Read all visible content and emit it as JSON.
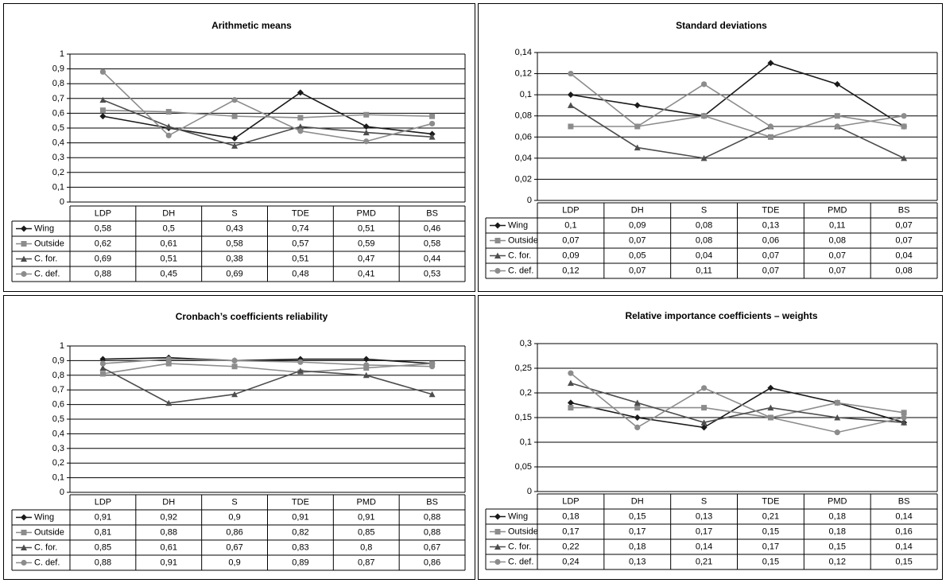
{
  "chart_data": [
    {
      "type": "line",
      "title": "Arithmetic means",
      "categories": [
        "LDP",
        "DH",
        "S",
        "TDE",
        "PMD",
        "BS"
      ],
      "ylim": [
        0,
        1
      ],
      "yticks": [
        "0",
        "0,1",
        "0,2",
        "0,3",
        "0,4",
        "0,5",
        "0,6",
        "0,7",
        "0,8",
        "0,9",
        "1"
      ],
      "grid": true,
      "legend": "data-table-left",
      "series": [
        {
          "name": "Wing",
          "values": [
            0.58,
            0.5,
            0.43,
            0.74,
            0.51,
            0.46
          ],
          "labels": [
            "0,58",
            "0,5",
            "0,43",
            "0,74",
            "0,51",
            "0,46"
          ],
          "color": "#1a1a1a",
          "marker": "diamond"
        },
        {
          "name": "Outside",
          "values": [
            0.62,
            0.61,
            0.58,
            0.57,
            0.59,
            0.58
          ],
          "labels": [
            "0,62",
            "0,61",
            "0,58",
            "0,57",
            "0,59",
            "0,58"
          ],
          "color": "#8c8c8c",
          "marker": "square"
        },
        {
          "name": "C. for.",
          "values": [
            0.69,
            0.51,
            0.38,
            0.51,
            0.47,
            0.44
          ],
          "labels": [
            "0,69",
            "0,51",
            "0,38",
            "0,51",
            "0,47",
            "0,44"
          ],
          "color": "#4d4d4d",
          "marker": "triangle"
        },
        {
          "name": "C. def.",
          "values": [
            0.88,
            0.45,
            0.69,
            0.48,
            0.41,
            0.53
          ],
          "labels": [
            "0,88",
            "0,45",
            "0,69",
            "0,48",
            "0,41",
            "0,53"
          ],
          "color": "#8c8c8c",
          "marker": "circle"
        }
      ]
    },
    {
      "type": "line",
      "title": "Standard deviations",
      "categories": [
        "LDP",
        "DH",
        "S",
        "TDE",
        "PMD",
        "BS"
      ],
      "ylim": [
        0,
        0.14
      ],
      "yticks": [
        "0",
        "0,02",
        "0,04",
        "0,06",
        "0,08",
        "0,1",
        "0,12",
        "0,14"
      ],
      "grid": true,
      "legend": "data-table-left",
      "series": [
        {
          "name": "Wing",
          "values": [
            0.1,
            0.09,
            0.08,
            0.13,
            0.11,
            0.07
          ],
          "labels": [
            "0,1",
            "0,09",
            "0,08",
            "0,13",
            "0,11",
            "0,07"
          ],
          "color": "#1a1a1a",
          "marker": "diamond"
        },
        {
          "name": "Outside",
          "values": [
            0.07,
            0.07,
            0.08,
            0.06,
            0.08,
            0.07
          ],
          "labels": [
            "0,07",
            "0,07",
            "0,08",
            "0,06",
            "0,08",
            "0,07"
          ],
          "color": "#8c8c8c",
          "marker": "square"
        },
        {
          "name": "C. for.",
          "values": [
            0.09,
            0.05,
            0.04,
            0.07,
            0.07,
            0.04
          ],
          "labels": [
            "0,09",
            "0,05",
            "0,04",
            "0,07",
            "0,07",
            "0,04"
          ],
          "color": "#4d4d4d",
          "marker": "triangle"
        },
        {
          "name": "C. def.",
          "values": [
            0.12,
            0.07,
            0.11,
            0.07,
            0.07,
            0.08
          ],
          "labels": [
            "0,12",
            "0,07",
            "0,11",
            "0,07",
            "0,07",
            "0,08"
          ],
          "color": "#8c8c8c",
          "marker": "circle"
        }
      ]
    },
    {
      "type": "line",
      "title": "Cronbach’s coefficients reliability",
      "categories": [
        "LDP",
        "DH",
        "S",
        "TDE",
        "PMD",
        "BS"
      ],
      "ylim": [
        0,
        1
      ],
      "yticks": [
        "0",
        "0,1",
        "0,2",
        "0,3",
        "0,4",
        "0,5",
        "0,6",
        "0,7",
        "0,8",
        "0,9",
        "1"
      ],
      "grid": true,
      "legend": "data-table-left",
      "series": [
        {
          "name": "Wing",
          "values": [
            0.91,
            0.92,
            0.9,
            0.91,
            0.91,
            0.88
          ],
          "labels": [
            "0,91",
            "0,92",
            "0,9",
            "0,91",
            "0,91",
            "0,88"
          ],
          "color": "#1a1a1a",
          "marker": "diamond"
        },
        {
          "name": "Outside",
          "values": [
            0.81,
            0.88,
            0.86,
            0.82,
            0.85,
            0.88
          ],
          "labels": [
            "0,81",
            "0,88",
            "0,86",
            "0,82",
            "0,85",
            "0,88"
          ],
          "color": "#8c8c8c",
          "marker": "square"
        },
        {
          "name": "C. for.",
          "values": [
            0.85,
            0.61,
            0.67,
            0.83,
            0.8,
            0.67
          ],
          "labels": [
            "0,85",
            "0,61",
            "0,67",
            "0,83",
            "0,8",
            "0,67"
          ],
          "color": "#4d4d4d",
          "marker": "triangle"
        },
        {
          "name": "C. def.",
          "values": [
            0.88,
            0.91,
            0.9,
            0.89,
            0.87,
            0.86
          ],
          "labels": [
            "0,88",
            "0,91",
            "0,9",
            "0,89",
            "0,87",
            "0,86"
          ],
          "color": "#8c8c8c",
          "marker": "circle"
        }
      ]
    },
    {
      "type": "line",
      "title": "Relative importance coefficients – weights",
      "categories": [
        "LDP",
        "DH",
        "S",
        "TDE",
        "PMD",
        "BS"
      ],
      "ylim": [
        0,
        0.3
      ],
      "yticks": [
        "0",
        "0,05",
        "0,1",
        "0,15",
        "0,2",
        "0,25",
        "0,3"
      ],
      "grid": true,
      "legend": "data-table-left",
      "series": [
        {
          "name": "Wing",
          "values": [
            0.18,
            0.15,
            0.13,
            0.21,
            0.18,
            0.14
          ],
          "labels": [
            "0,18",
            "0,15",
            "0,13",
            "0,21",
            "0,18",
            "0,14"
          ],
          "color": "#1a1a1a",
          "marker": "diamond"
        },
        {
          "name": "Outside",
          "values": [
            0.17,
            0.17,
            0.17,
            0.15,
            0.18,
            0.16
          ],
          "labels": [
            "0,17",
            "0,17",
            "0,17",
            "0,15",
            "0,18",
            "0,16"
          ],
          "color": "#8c8c8c",
          "marker": "square"
        },
        {
          "name": "C. for.",
          "values": [
            0.22,
            0.18,
            0.14,
            0.17,
            0.15,
            0.14
          ],
          "labels": [
            "0,22",
            "0,18",
            "0,14",
            "0,17",
            "0,15",
            "0,14"
          ],
          "color": "#4d4d4d",
          "marker": "triangle"
        },
        {
          "name": "C. def.",
          "values": [
            0.24,
            0.13,
            0.21,
            0.15,
            0.12,
            0.15
          ],
          "labels": [
            "0,24",
            "0,13",
            "0,21",
            "0,15",
            "0,12",
            "0,15"
          ],
          "color": "#8c8c8c",
          "marker": "circle"
        }
      ]
    }
  ]
}
